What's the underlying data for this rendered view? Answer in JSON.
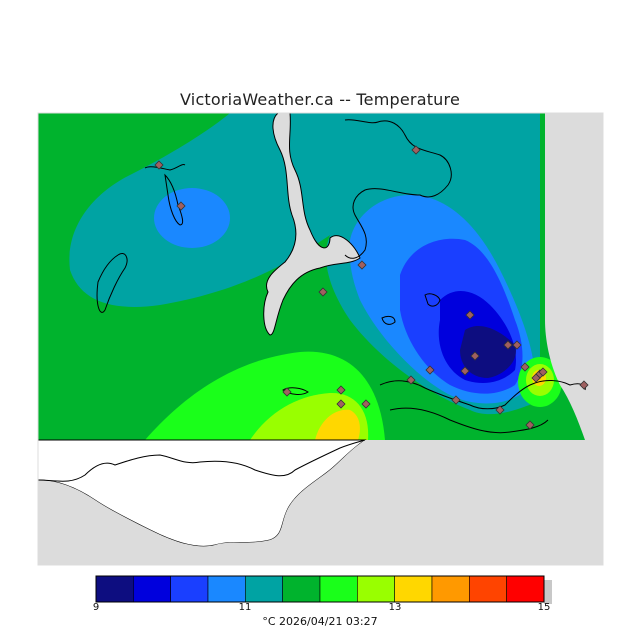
{
  "title": "VictoriaWeather.ca -- Temperature",
  "legend": {
    "unit_date": "°C  2026/04/21 03:27",
    "ticks": [
      "9",
      "11",
      "13",
      "15"
    ],
    "colors": [
      "#0d0d80",
      "#0000dd",
      "#1a3fff",
      "#1a88ff",
      "#00a3a3",
      "#00b32d",
      "#1aff1a",
      "#99ff00",
      "#ffd700",
      "#ff9900",
      "#ff4400",
      "#ff0000"
    ]
  },
  "colors": {
    "background_land": "#dcdcdc",
    "water": "#ffffff",
    "station_marker": "#a06060"
  },
  "stations_count": 24
}
